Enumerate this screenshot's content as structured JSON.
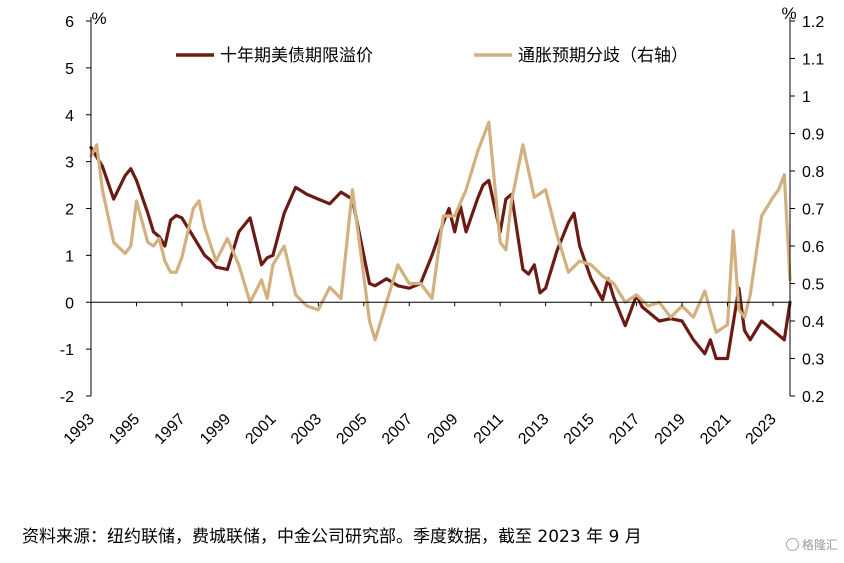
{
  "chart_data": {
    "type": "line",
    "title": "",
    "left_unit": "%",
    "right_unit": "%",
    "left_axis": {
      "min": -2,
      "max": 6,
      "ticks": [
        6,
        5,
        4,
        3,
        2,
        1,
        0,
        -1,
        -2
      ]
    },
    "right_axis": {
      "min": 0.2,
      "max": 1.2,
      "ticks": [
        "1.2",
        "1.1",
        "1",
        "0.9",
        "0.8",
        "0.7",
        "0.6",
        "0.5",
        "0.4",
        "0.3",
        "0.2"
      ]
    },
    "x_axis": {
      "start": 1993,
      "end": 2023.75,
      "tick_labels": [
        "1993",
        "1995",
        "1997",
        "1999",
        "2001",
        "2003",
        "2005",
        "2007",
        "2009",
        "2011",
        "2013",
        "2015",
        "2017",
        "2019",
        "2021",
        "2023"
      ]
    },
    "legend_position": "top",
    "series": [
      {
        "name": "十年期美债期限溢价",
        "axis": "left",
        "color": "#6b1a14",
        "x": [
          1993.0,
          1993.5,
          1994.0,
          1994.5,
          1994.75,
          1995.0,
          1995.5,
          1995.75,
          1996.0,
          1996.25,
          1996.5,
          1996.75,
          1997.0,
          1997.5,
          1998.0,
          1998.25,
          1998.5,
          1999.0,
          1999.5,
          2000.0,
          2000.5,
          2000.75,
          2001.0,
          2001.5,
          2002.0,
          2002.5,
          2003.0,
          2003.5,
          2004.0,
          2004.5,
          2005.0,
          2005.25,
          2005.5,
          2006.0,
          2006.5,
          2007.0,
          2007.5,
          2008.0,
          2008.5,
          2008.75,
          2009.0,
          2009.25,
          2009.5,
          2010.0,
          2010.25,
          2010.5,
          2011.0,
          2011.25,
          2011.5,
          2012.0,
          2012.25,
          2012.5,
          2012.75,
          2013.0,
          2013.5,
          2014.0,
          2014.25,
          2014.5,
          2015.0,
          2015.5,
          2015.75,
          2016.0,
          2016.5,
          2017.0,
          2017.25,
          2017.5,
          2018.0,
          2018.5,
          2019.0,
          2019.5,
          2020.0,
          2020.25,
          2020.5,
          2021.0,
          2021.5,
          2021.75,
          2022.0,
          2022.5,
          2023.0,
          2023.5,
          2023.75
        ],
        "values": [
          3.3,
          2.9,
          2.2,
          2.7,
          2.85,
          2.6,
          1.9,
          1.5,
          1.4,
          1.2,
          1.75,
          1.85,
          1.8,
          1.4,
          1.0,
          0.9,
          0.75,
          0.7,
          1.5,
          1.8,
          0.8,
          0.95,
          1.0,
          1.9,
          2.45,
          2.3,
          2.2,
          2.1,
          2.35,
          2.2,
          1.0,
          0.4,
          0.35,
          0.5,
          0.35,
          0.3,
          0.4,
          1.0,
          1.7,
          2.0,
          1.5,
          2.05,
          1.5,
          2.2,
          2.5,
          2.6,
          1.5,
          2.2,
          2.3,
          0.7,
          0.6,
          0.8,
          0.2,
          0.3,
          1.1,
          1.7,
          1.9,
          1.2,
          0.5,
          0.05,
          0.5,
          0.1,
          -0.5,
          0.15,
          -0.1,
          -0.2,
          -0.4,
          -0.35,
          -0.4,
          -0.8,
          -1.1,
          -0.8,
          -1.2,
          -1.2,
          0.3,
          -0.6,
          -0.8,
          -0.4,
          -0.6,
          -0.8,
          0.0
        ]
      },
      {
        "name": "通胀预期分歧（右轴）",
        "axis": "right",
        "color": "#d2b07f",
        "x": [
          1993.0,
          1993.25,
          1993.5,
          1994.0,
          1994.5,
          1994.75,
          1995.0,
          1995.5,
          1995.75,
          1996.0,
          1996.25,
          1996.5,
          1996.75,
          1997.0,
          1997.5,
          1997.75,
          1998.0,
          1998.5,
          1999.0,
          1999.5,
          2000.0,
          2000.5,
          2000.75,
          2001.0,
          2001.5,
          2002.0,
          2002.5,
          2003.0,
          2003.5,
          2004.0,
          2004.5,
          2005.0,
          2005.25,
          2005.5,
          2006.0,
          2006.5,
          2007.0,
          2007.5,
          2008.0,
          2008.5,
          2009.0,
          2009.5,
          2009.75,
          2010.0,
          2010.5,
          2011.0,
          2011.25,
          2011.5,
          2012.0,
          2012.5,
          2013.0,
          2013.5,
          2014.0,
          2014.5,
          2015.0,
          2015.5,
          2016.0,
          2016.5,
          2017.0,
          2017.5,
          2018.0,
          2018.5,
          2019.0,
          2019.5,
          2020.0,
          2020.5,
          2021.0,
          2021.25,
          2021.5,
          2021.75,
          2022.0,
          2022.5,
          2023.0,
          2023.25,
          2023.5,
          2023.75
        ],
        "values": [
          0.84,
          0.87,
          0.75,
          0.61,
          0.58,
          0.6,
          0.72,
          0.61,
          0.6,
          0.62,
          0.56,
          0.53,
          0.53,
          0.57,
          0.7,
          0.72,
          0.65,
          0.56,
          0.62,
          0.55,
          0.45,
          0.51,
          0.46,
          0.55,
          0.6,
          0.47,
          0.44,
          0.43,
          0.49,
          0.46,
          0.75,
          0.52,
          0.4,
          0.35,
          0.45,
          0.55,
          0.5,
          0.5,
          0.46,
          0.68,
          0.68,
          0.75,
          0.8,
          0.85,
          0.93,
          0.61,
          0.59,
          0.72,
          0.87,
          0.73,
          0.75,
          0.63,
          0.53,
          0.56,
          0.55,
          0.52,
          0.5,
          0.45,
          0.47,
          0.44,
          0.45,
          0.41,
          0.44,
          0.41,
          0.48,
          0.37,
          0.39,
          0.64,
          0.43,
          0.41,
          0.47,
          0.68,
          0.73,
          0.75,
          0.79,
          0.51
        ]
      }
    ]
  },
  "source_note": "资料来源：纽约联储，费城联储，中金公司研究部。季度数据，截至 2023 年 9 月",
  "watermark": {
    "icon": "brand-logo-icon",
    "text": "格隆汇"
  }
}
